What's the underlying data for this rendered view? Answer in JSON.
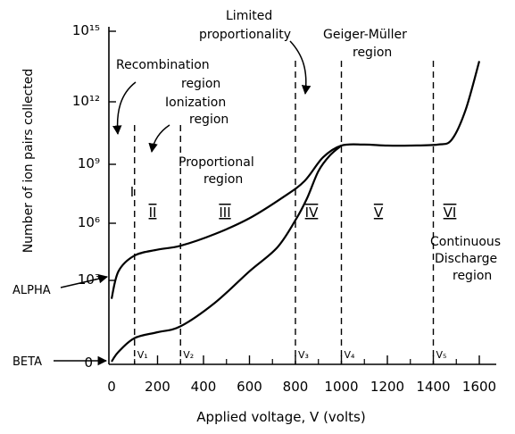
{
  "chart_data": {
    "type": "line",
    "xlabel": "Applied voltage, V (volts)",
    "ylabel": "Number of ion pairs collected",
    "x_ticks": [
      "0",
      "200",
      "400",
      "600",
      "800",
      "1000",
      "1200",
      "1400",
      "1600"
    ],
    "y_ticks": [
      "0",
      "10³",
      "10⁶",
      "10⁹",
      "10¹²",
      "10¹⁵"
    ],
    "y_scale": "log",
    "x_range": [
      0,
      1700
    ],
    "y_range_log10": [
      0,
      16
    ],
    "series": [
      {
        "name": "ALPHA",
        "points": [
          [
            0,
            3.2
          ],
          [
            30,
            4.6
          ],
          [
            100,
            5.4
          ],
          [
            200,
            5.7
          ],
          [
            300,
            5.9
          ],
          [
            450,
            6.5
          ],
          [
            600,
            7.3
          ],
          [
            750,
            8.4
          ],
          [
            840,
            9.2
          ],
          [
            920,
            10.4
          ],
          [
            1000,
            11.0
          ],
          [
            1100,
            11.05
          ],
          [
            1200,
            11.0
          ],
          [
            1300,
            11.0
          ],
          [
            1420,
            11.05
          ],
          [
            1480,
            11.3
          ],
          [
            1540,
            12.8
          ],
          [
            1600,
            15.3
          ]
        ]
      },
      {
        "name": "BETA",
        "points": [
          [
            0,
            0
          ],
          [
            30,
            0.5
          ],
          [
            100,
            1.2
          ],
          [
            200,
            1.5
          ],
          [
            300,
            1.8
          ],
          [
            450,
            3.0
          ],
          [
            600,
            4.6
          ],
          [
            720,
            5.8
          ],
          [
            800,
            7.2
          ],
          [
            850,
            8.3
          ],
          [
            900,
            9.7
          ],
          [
            950,
            10.5
          ],
          [
            1000,
            11.0
          ]
        ]
      }
    ],
    "voltage_boundaries": [
      {
        "label": "V₁",
        "x": 100
      },
      {
        "label": "V₂",
        "x": 300
      },
      {
        "label": "V₃",
        "x": 800
      },
      {
        "label": "V₄",
        "x": 1000
      },
      {
        "label": "V₅",
        "x": 1400
      }
    ],
    "region_numerals": [
      "I",
      "II",
      "III",
      "IV",
      "V",
      "VI"
    ],
    "annotations": {
      "recombination": [
        "Recombination",
        "region"
      ],
      "ionization": [
        "Ionization",
        "region"
      ],
      "proportional": [
        "Proportional",
        "region"
      ],
      "limited": [
        "Limited",
        "proportionality"
      ],
      "geiger": [
        "Geiger-Müller",
        "region"
      ],
      "continuous": [
        "Continuous",
        "Discharge",
        "region"
      ]
    }
  }
}
